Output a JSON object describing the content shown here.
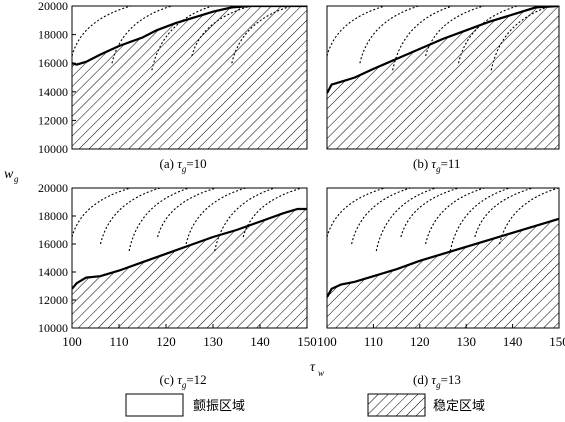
{
  "figure": {
    "y_axis_label": "w",
    "y_axis_label_sub": "g",
    "x_axis_label": "τ",
    "x_axis_label_sub": "w"
  },
  "legend": {
    "items": [
      {
        "label": "颤振区域",
        "pattern": "blank"
      },
      {
        "label": "稳定区域",
        "pattern": "hatched"
      }
    ]
  },
  "chart_data": [
    {
      "type": "area",
      "caption_prefix": "(a) τ",
      "caption_sub": "g",
      "caption_value": "=10",
      "xlim": [
        100,
        150
      ],
      "ylim": [
        10000,
        20000
      ],
      "yticks": [
        10000,
        12000,
        14000,
        16000,
        18000,
        20000
      ],
      "xticks": [],
      "boundary": {
        "x": [
          100,
          101,
          103,
          106,
          110,
          115,
          118,
          122,
          126,
          130,
          134,
          138,
          142,
          146,
          150
        ],
        "y": [
          16000,
          15900,
          16100,
          16600,
          17200,
          17800,
          18300,
          18800,
          19200,
          19600,
          19900,
          20000,
          20000,
          20000,
          20000
        ]
      },
      "regions": {
        "hatched": "stable",
        "blank": "chatter"
      }
    },
    {
      "type": "area",
      "caption_prefix": "(b) τ",
      "caption_sub": "g",
      "caption_value": "=11",
      "xlim": [
        100,
        150
      ],
      "ylim": [
        10000,
        20000
      ],
      "yticks": [],
      "xticks": [],
      "boundary": {
        "x": [
          100,
          101,
          103,
          106,
          110,
          115,
          120,
          125,
          130,
          135,
          140,
          145,
          150
        ],
        "y": [
          13900,
          14500,
          14700,
          15000,
          15600,
          16300,
          17000,
          17700,
          18300,
          18900,
          19400,
          19900,
          20000
        ]
      },
      "regions": {
        "hatched": "stable",
        "blank": "chatter"
      }
    },
    {
      "type": "area",
      "caption_prefix": "(c) τ",
      "caption_sub": "g",
      "caption_value": "=12",
      "xlim": [
        100,
        150
      ],
      "ylim": [
        10000,
        20000
      ],
      "yticks": [
        10000,
        12000,
        14000,
        16000,
        18000,
        20000
      ],
      "xticks": [
        100,
        110,
        120,
        130,
        140,
        150
      ],
      "boundary": {
        "x": [
          100,
          101,
          103,
          106,
          110,
          115,
          120,
          125,
          130,
          135,
          140,
          145,
          148,
          150
        ],
        "y": [
          12800,
          13200,
          13600,
          13700,
          14100,
          14700,
          15300,
          15900,
          16500,
          17000,
          17600,
          18200,
          18500,
          18500
        ]
      },
      "regions": {
        "hatched": "stable",
        "blank": "chatter"
      }
    },
    {
      "type": "area",
      "caption_prefix": "(d) τ",
      "caption_sub": "g",
      "caption_value": "=13",
      "xlim": [
        100,
        150
      ],
      "ylim": [
        10000,
        20000
      ],
      "yticks": [],
      "xticks": [
        100,
        110,
        120,
        130,
        140,
        150
      ],
      "boundary": {
        "x": [
          100,
          101,
          103,
          106,
          110,
          115,
          120,
          125,
          130,
          135,
          140,
          145,
          150
        ],
        "y": [
          12200,
          12800,
          13100,
          13300,
          13700,
          14200,
          14800,
          15300,
          15800,
          16300,
          16800,
          17300,
          17800
        ]
      },
      "regions": {
        "hatched": "stable",
        "blank": "chatter"
      }
    }
  ]
}
